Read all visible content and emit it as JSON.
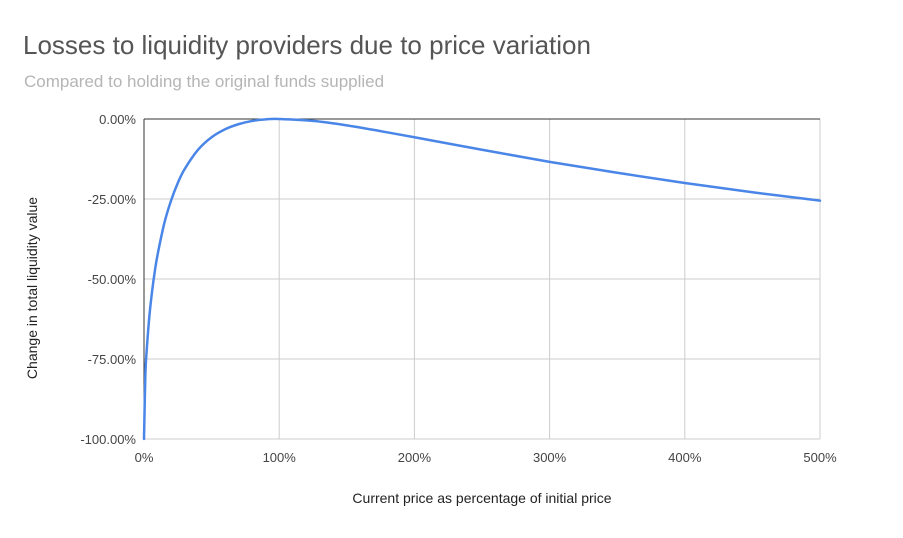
{
  "chart_data": {
    "type": "line",
    "title": "Losses to liquidity providers due to price variation",
    "subtitle": "Compared to holding the original funds supplied",
    "xlabel": "Current price as percentage of initial price",
    "ylabel": "Change in total liquidity value",
    "xlim": [
      0,
      500
    ],
    "ylim": [
      -100,
      0
    ],
    "x_ticks": [
      "0%",
      "100%",
      "200%",
      "300%",
      "400%",
      "500%"
    ],
    "y_ticks": [
      "0.00%",
      "-25.00%",
      "-50.00%",
      "-75.00%",
      "-100.00%"
    ],
    "grid": true,
    "legend": "none",
    "series": [
      {
        "color": "#4a86e8",
        "x": [
          0,
          1,
          2,
          4,
          6,
          8,
          10,
          15,
          20,
          25,
          30,
          40,
          50,
          60,
          70,
          80,
          90,
          100,
          125,
          150,
          175,
          200,
          250,
          300,
          350,
          400,
          450,
          500
        ],
        "y": [
          -100,
          -80.2,
          -72.3,
          -61.5,
          -53.8,
          -47.6,
          -42.5,
          -32.6,
          -25.5,
          -20.0,
          -15.7,
          -9.6,
          -5.7,
          -3.2,
          -1.6,
          -0.6,
          -0.1,
          0,
          -0.6,
          -2.0,
          -3.8,
          -5.7,
          -9.6,
          -13.4,
          -16.8,
          -20.0,
          -22.9,
          -25.5
        ]
      }
    ]
  }
}
